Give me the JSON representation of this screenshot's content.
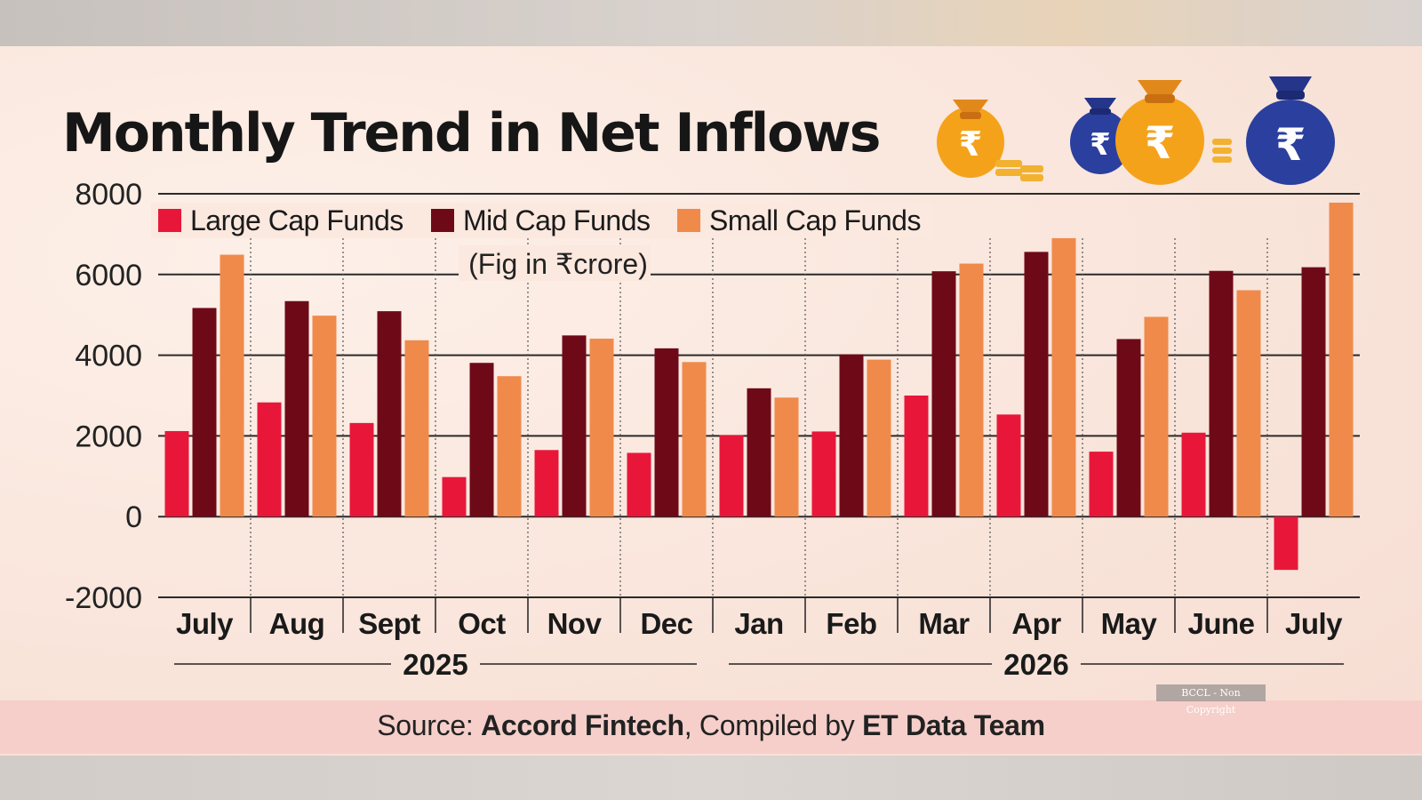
{
  "chart_data": {
    "type": "bar",
    "title": "Monthly Trend in Net Inflows",
    "subtitle": "(Fig in ₹crore)",
    "categories": [
      "July",
      "Aug",
      "Sept",
      "Oct",
      "Nov",
      "Dec",
      "Jan",
      "Feb",
      "Mar",
      "Apr",
      "May",
      "June",
      "July"
    ],
    "year_groups": [
      {
        "label": "2025",
        "from": 0,
        "to": 5
      },
      {
        "label": "2026",
        "from": 6,
        "to": 12
      }
    ],
    "series": [
      {
        "name": "Large Cap Funds",
        "color": "#e8173a",
        "values": [
          2120,
          2830,
          2320,
          980,
          1650,
          1580,
          2020,
          2110,
          3000,
          2530,
          1610,
          2080,
          -1320
        ]
      },
      {
        "name": "Mid Cap Funds",
        "color": "#6e0a18",
        "values": [
          5170,
          5340,
          5090,
          3810,
          4490,
          4170,
          3180,
          4020,
          6080,
          6560,
          4400,
          6090,
          6180
        ]
      },
      {
        "name": "Small Cap Funds",
        "color": "#f08a4b",
        "values": [
          6490,
          4980,
          4370,
          3480,
          4410,
          3830,
          2950,
          3890,
          6270,
          6900,
          4950,
          5610,
          7780
        ]
      }
    ],
    "ylim": [
      -2000,
      8000
    ],
    "yticks": [
      8000,
      6000,
      4000,
      2000,
      0,
      -2000
    ],
    "ytick_labels": [
      "8000",
      "6000",
      "4000",
      "2000",
      "0",
      "-2000"
    ],
    "grid": true,
    "legend_position": "top-left"
  },
  "source": {
    "prefix": "Source: ",
    "org": "Accord Fintech",
    "middle": ", Compiled by ",
    "team": "ET Data Team"
  },
  "watermark": "BCCL - Non Copyright",
  "decor": {
    "icons": [
      "rupee-money-bag-icon",
      "coin-stack-icon"
    ],
    "colors": {
      "gold": "#f5a21b",
      "navy": "#2a3f9e"
    }
  }
}
